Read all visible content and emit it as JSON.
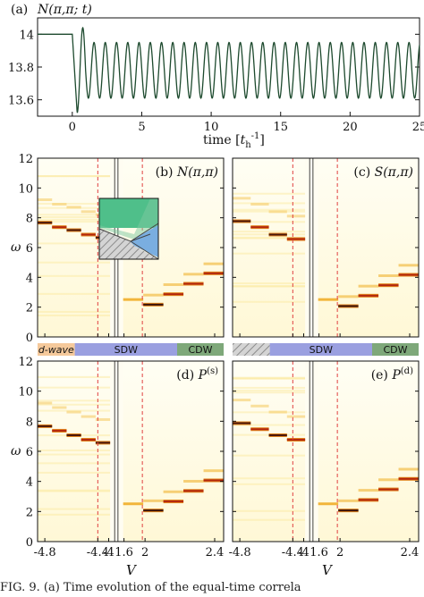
{
  "chart_data": [
    {
      "type": "line",
      "panel_label": "(a)",
      "title": "N(π,π; t)",
      "xlabel": "time [t_h^-1]",
      "xlim": [
        -2.5,
        25
      ],
      "ylim": [
        13.5,
        14.1
      ],
      "xticks": [
        "0",
        "5",
        "10",
        "15",
        "20",
        "25"
      ],
      "yticks": [
        "14",
        "13.8",
        "13.6"
      ],
      "series": [
        {
          "pre_pulse_level": 14.0,
          "oscillation_center": 13.78,
          "oscillation_amplitude": 0.17,
          "oscillation_period": 0.81,
          "drop_time": 0.0,
          "drop_minimum": 13.52
        }
      ]
    },
    {
      "type": "heatmap",
      "panel_label": "(b)",
      "title": "N(π,π)",
      "ylabel": "ω",
      "ylim": [
        0,
        12
      ],
      "yticks": [
        "0",
        "2",
        "4",
        "6",
        "8",
        "10",
        "12"
      ],
      "xticks": [
        "-4.8",
        "-4.4",
        "-4",
        "1.6",
        "2",
        "2.4"
      ],
      "dashed_lines_at": [
        "-4.4",
        "1.8"
      ],
      "peaks_left": [
        7.7,
        7.4,
        7.2,
        6.9,
        6.7
      ],
      "peaks_right": [
        2.2,
        2.9,
        3.6,
        4.3
      ]
    },
    {
      "type": "heatmap",
      "panel_label": "(c)",
      "title": "S(π,π)",
      "peaks_left": [
        7.8,
        7.4,
        6.9,
        6.6
      ],
      "peaks_right": [
        2.1,
        2.8,
        3.5,
        4.2
      ]
    },
    {
      "type": "heatmap",
      "panel_label": "(d)",
      "title": "P",
      "title_superscript": "(s)",
      "xlabel": "V",
      "ylabel": "ω",
      "ylim": [
        0,
        12
      ],
      "yticks": [
        "0",
        "2",
        "4",
        "6",
        "8",
        "10",
        "12"
      ],
      "xticks": [
        "-4.8",
        "-4.4",
        "-4",
        "1.6",
        "2",
        "2.4"
      ],
      "peaks_left": [
        7.7,
        7.4,
        7.1,
        6.8,
        6.6
      ],
      "peaks_right": [
        2.1,
        2.7,
        3.4,
        4.1
      ]
    },
    {
      "type": "heatmap",
      "panel_label": "(e)",
      "title": "P",
      "title_superscript": "(d)",
      "xlabel": "V",
      "peaks_left": [
        7.9,
        7.5,
        7.1,
        6.8
      ],
      "peaks_right": [
        2.1,
        2.8,
        3.5,
        4.2
      ]
    }
  ],
  "phase_bars": {
    "left": [
      {
        "label": "d-wave",
        "color": "#f5c99b"
      },
      {
        "label": "SDW",
        "color": "#9a9fe0"
      },
      {
        "label": "CDW",
        "color": "#7ea87a"
      }
    ],
    "right": [
      {
        "label": "",
        "color": "#c8c8c8"
      },
      {
        "label": "SDW",
        "color": "#9a9fe0"
      },
      {
        "label": "CDW",
        "color": "#7ea87a"
      }
    ]
  },
  "caption": "FIG. 9.    (a) Time evolution of the equal-time correla"
}
